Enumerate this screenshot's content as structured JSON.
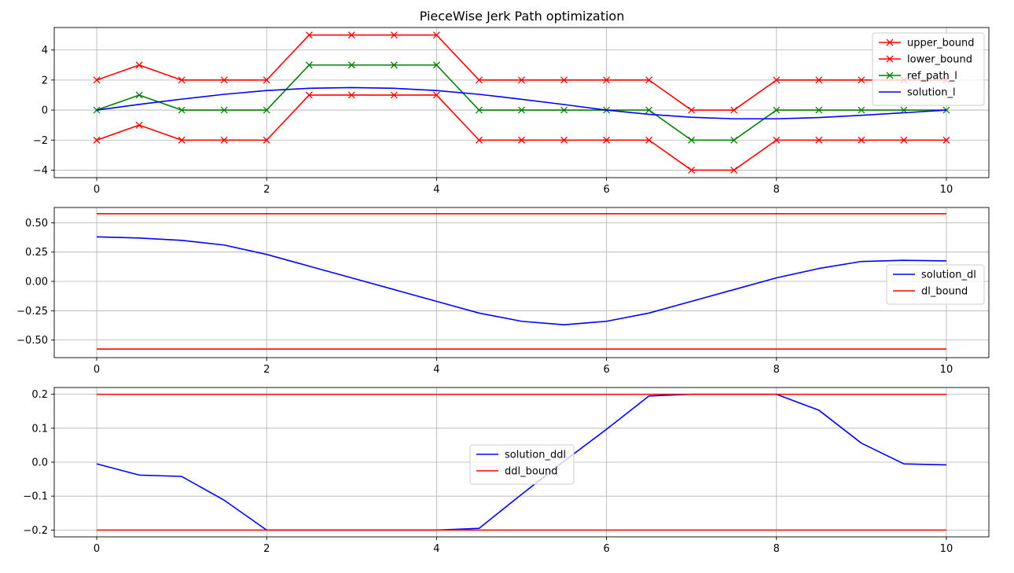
{
  "title": "PieceWise Jerk Path optimization",
  "chart_data": [
    {
      "type": "line",
      "title": "PieceWise Jerk Path optimization",
      "xlabel": "",
      "ylabel": "",
      "xlim": [
        -0.5,
        10.5
      ],
      "ylim": [
        -4.5,
        5.5
      ],
      "xticks": [
        0,
        2,
        4,
        6,
        8,
        10
      ],
      "yticks": [
        -4,
        -2,
        0,
        2,
        4
      ],
      "grid": true,
      "legend_position": "upper right",
      "x": [
        0,
        0.5,
        1,
        1.5,
        2,
        2.5,
        3,
        3.5,
        4,
        4.5,
        5,
        5.5,
        6,
        6.5,
        7,
        7.5,
        8,
        8.5,
        9,
        9.5,
        10
      ],
      "series": [
        {
          "name": "upper_bound",
          "color": "#ff0000",
          "marker": "x",
          "values": [
            2,
            3,
            2,
            2,
            2,
            5,
            5,
            5,
            5,
            2,
            2,
            2,
            2,
            2,
            0,
            0,
            2,
            2,
            2,
            2,
            2
          ]
        },
        {
          "name": "lower_bound",
          "color": "#ff0000",
          "marker": "x",
          "values": [
            -2,
            -1,
            -2,
            -2,
            -2,
            1,
            1,
            1,
            1,
            -2,
            -2,
            -2,
            -2,
            -2,
            -4,
            -4,
            -2,
            -2,
            -2,
            -2,
            -2
          ]
        },
        {
          "name": "ref_path_l",
          "color": "#008000",
          "marker": "x",
          "values": [
            0,
            1,
            0,
            0,
            0,
            3,
            3,
            3,
            3,
            0,
            0,
            0,
            0,
            0,
            -2,
            -2,
            0,
            0,
            0,
            0,
            0
          ]
        },
        {
          "name": "solution_l",
          "color": "#0000ff",
          "marker": "",
          "values": [
            0,
            0.38,
            0.73,
            1.05,
            1.3,
            1.45,
            1.5,
            1.45,
            1.3,
            1.05,
            0.72,
            0.37,
            0.0,
            -0.28,
            -0.48,
            -0.58,
            -0.58,
            -0.5,
            -0.35,
            -0.18,
            0.0
          ]
        }
      ]
    },
    {
      "type": "line",
      "title": "",
      "xlabel": "",
      "ylabel": "",
      "xlim": [
        -0.5,
        10.5
      ],
      "ylim": [
        -0.65,
        0.63
      ],
      "xticks": [
        0,
        2,
        4,
        6,
        8,
        10
      ],
      "yticks": [
        -0.5,
        -0.25,
        0.0,
        0.25,
        0.5
      ],
      "ytick_labels": [
        "−0.50",
        "−0.25",
        "0.00",
        "0.25",
        "0.50"
      ],
      "grid": true,
      "legend_position": "center right",
      "x": [
        0,
        0.5,
        1,
        1.5,
        2,
        2.5,
        3,
        3.5,
        4,
        4.5,
        5,
        5.5,
        6,
        6.5,
        7,
        7.5,
        8,
        8.5,
        9,
        9.5,
        10
      ],
      "series": [
        {
          "name": "solution_dl",
          "color": "#0000ff",
          "marker": "",
          "values": [
            0.38,
            0.37,
            0.35,
            0.31,
            0.23,
            0.13,
            0.03,
            -0.07,
            -0.17,
            -0.27,
            -0.34,
            -0.37,
            -0.34,
            -0.27,
            -0.17,
            -0.07,
            0.03,
            0.11,
            0.17,
            0.18,
            0.175
          ]
        },
        {
          "name": "dl_bound",
          "color": "#ff0000",
          "marker": "",
          "segments": true,
          "lines": [
            {
              "x": [
                0,
                10
              ],
              "y": [
                0.577,
                0.577
              ]
            },
            {
              "x": [
                0,
                10
              ],
              "y": [
                -0.577,
                -0.577
              ]
            }
          ]
        }
      ]
    },
    {
      "type": "line",
      "title": "",
      "xlabel": "",
      "ylabel": "",
      "xlim": [
        -0.5,
        10.5
      ],
      "ylim": [
        -0.22,
        0.22
      ],
      "xticks": [
        0,
        2,
        4,
        6,
        8,
        10
      ],
      "yticks": [
        -0.2,
        -0.1,
        0.0,
        0.1,
        0.2
      ],
      "ytick_labels": [
        "−0.2",
        "−0.1",
        "0.0",
        "0.1",
        "0.2"
      ],
      "grid": true,
      "legend_position": "center",
      "x": [
        0,
        0.5,
        1,
        1.5,
        2,
        2.5,
        3,
        3.5,
        4,
        4.5,
        5,
        5.5,
        6,
        6.5,
        7,
        7.5,
        8,
        8.5,
        9,
        9.5,
        10
      ],
      "series": [
        {
          "name": "solution_ddl",
          "color": "#0000ff",
          "marker": "",
          "values": [
            -0.005,
            -0.038,
            -0.042,
            -0.112,
            -0.2,
            -0.2,
            -0.2,
            -0.2,
            -0.2,
            -0.195,
            -0.095,
            0.003,
            0.097,
            0.195,
            0.2,
            0.2,
            0.2,
            0.153,
            0.056,
            -0.005,
            -0.008
          ]
        },
        {
          "name": "ddl_bound",
          "color": "#ff0000",
          "marker": "",
          "segments": true,
          "lines": [
            {
              "x": [
                0,
                10
              ],
              "y": [
                0.2,
                0.2
              ]
            },
            {
              "x": [
                0,
                10
              ],
              "y": [
                -0.2,
                -0.2
              ]
            }
          ]
        }
      ]
    }
  ]
}
